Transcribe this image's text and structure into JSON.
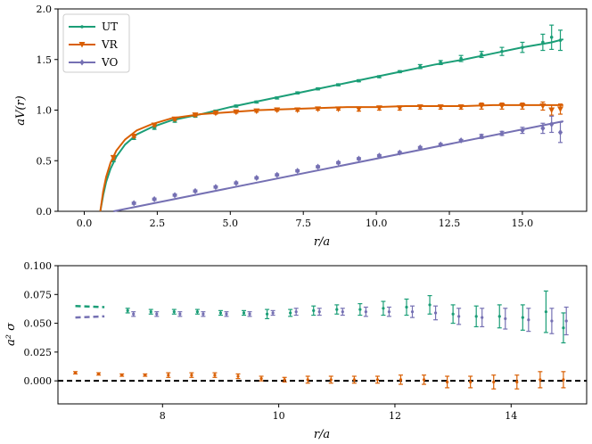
{
  "chart_data": [
    {
      "type": "line",
      "title": "",
      "xlabel": "r/a",
      "ylabel": "aV(r)",
      "xlim": [
        -0.9,
        17.2
      ],
      "ylim": [
        0.0,
        2.0
      ],
      "xticks": [
        0.0,
        2.5,
        5.0,
        7.5,
        10.0,
        12.5,
        15.0
      ],
      "xtick_labels": [
        "0.0",
        "2.5",
        "5.0",
        "7.5",
        "10.0",
        "12.5",
        "15.0"
      ],
      "yticks": [
        0.0,
        0.5,
        1.0,
        1.5,
        2.0
      ],
      "ytick_labels": [
        "0.0",
        "0.5",
        "1.0",
        "1.5",
        "2.0"
      ],
      "legend_position": "top-left",
      "series": [
        {
          "name": "UT",
          "color": "#1b9e77",
          "marker": "point",
          "fit_x": [
            0.55,
            0.65,
            0.75,
            0.9,
            1.1,
            1.4,
            1.8,
            2.3,
            3.0,
            4.0,
            5.0,
            6.0,
            7.0,
            8.0,
            9.0,
            10.0,
            11.0,
            12.0,
            13.0,
            14.0,
            15.0,
            16.0,
            16.4
          ],
          "fit_y": [
            0.0,
            0.16,
            0.29,
            0.42,
            0.54,
            0.66,
            0.76,
            0.83,
            0.9,
            0.96,
            1.03,
            1.09,
            1.15,
            1.21,
            1.27,
            1.33,
            1.39,
            1.45,
            1.5,
            1.56,
            1.62,
            1.67,
            1.7
          ],
          "points_x": [
            1.0,
            1.7,
            2.4,
            3.1,
            3.8,
            4.5,
            5.2,
            5.9,
            6.6,
            7.3,
            8.0,
            8.7,
            9.4,
            10.1,
            10.8,
            11.5,
            12.2,
            12.9,
            13.6,
            14.3,
            15.0,
            15.7,
            16.0,
            16.3
          ],
          "points_y": [
            0.5,
            0.72,
            0.82,
            0.89,
            0.94,
            0.99,
            1.04,
            1.08,
            1.12,
            1.17,
            1.21,
            1.25,
            1.29,
            1.33,
            1.38,
            1.43,
            1.47,
            1.51,
            1.55,
            1.58,
            1.62,
            1.67,
            1.72,
            1.69
          ],
          "points_err": [
            0.01,
            0.01,
            0.01,
            0.01,
            0.01,
            0.01,
            0.01,
            0.01,
            0.01,
            0.01,
            0.01,
            0.01,
            0.01,
            0.01,
            0.01,
            0.02,
            0.02,
            0.03,
            0.03,
            0.04,
            0.05,
            0.08,
            0.12,
            0.1
          ]
        },
        {
          "name": "VR",
          "color": "#d95f02",
          "marker": "triangle-down",
          "fit_x": [
            0.55,
            0.65,
            0.75,
            0.9,
            1.1,
            1.4,
            1.8,
            2.3,
            3.0,
            4.0,
            5.0,
            6.0,
            7.0,
            8.0,
            9.0,
            10.0,
            11.0,
            12.0,
            13.0,
            14.0,
            15.0,
            16.0,
            16.4
          ],
          "fit_y": [
            0.0,
            0.2,
            0.34,
            0.48,
            0.6,
            0.71,
            0.8,
            0.86,
            0.92,
            0.96,
            0.98,
            1.0,
            1.01,
            1.02,
            1.03,
            1.03,
            1.04,
            1.04,
            1.04,
            1.05,
            1.05,
            1.05,
            1.05
          ],
          "points_x": [
            1.0,
            1.7,
            2.4,
            3.1,
            3.8,
            4.5,
            5.2,
            5.9,
            6.6,
            7.3,
            8.0,
            8.7,
            9.4,
            10.1,
            10.8,
            11.5,
            12.2,
            12.9,
            13.6,
            14.3,
            15.0,
            15.7,
            16.0,
            16.3
          ],
          "points_y": [
            0.53,
            0.74,
            0.85,
            0.91,
            0.95,
            0.97,
            0.98,
            0.99,
            1.0,
            1.0,
            1.01,
            1.01,
            1.01,
            1.02,
            1.02,
            1.03,
            1.03,
            1.03,
            1.04,
            1.04,
            1.04,
            1.04,
            1.0,
            1.01
          ],
          "points_err": [
            0.02,
            0.01,
            0.01,
            0.01,
            0.01,
            0.01,
            0.01,
            0.01,
            0.01,
            0.01,
            0.01,
            0.01,
            0.02,
            0.02,
            0.02,
            0.02,
            0.02,
            0.02,
            0.03,
            0.03,
            0.03,
            0.04,
            0.05,
            0.05
          ]
        },
        {
          "name": "VO",
          "color": "#7570b3",
          "marker": "diamond",
          "fit_x": [
            1.0,
            16.4
          ],
          "fit_y": [
            0.0,
            0.89
          ],
          "points_x": [
            1.7,
            2.4,
            3.1,
            3.8,
            4.5,
            5.2,
            5.9,
            6.6,
            7.3,
            8.0,
            8.7,
            9.4,
            10.1,
            10.8,
            11.5,
            12.2,
            12.9,
            13.6,
            14.3,
            15.0,
            15.7,
            16.0,
            16.3
          ],
          "points_y": [
            0.08,
            0.12,
            0.16,
            0.2,
            0.24,
            0.28,
            0.33,
            0.36,
            0.4,
            0.44,
            0.48,
            0.52,
            0.55,
            0.58,
            0.63,
            0.66,
            0.7,
            0.74,
            0.77,
            0.8,
            0.82,
            0.86,
            0.78
          ],
          "points_err": [
            0.01,
            0.01,
            0.01,
            0.01,
            0.01,
            0.01,
            0.01,
            0.01,
            0.01,
            0.01,
            0.01,
            0.01,
            0.01,
            0.01,
            0.01,
            0.01,
            0.01,
            0.02,
            0.02,
            0.03,
            0.05,
            0.08,
            0.1
          ]
        }
      ]
    },
    {
      "type": "scatter",
      "title": "",
      "xlabel": "r/a",
      "ylabel": "a² σ",
      "xlim": [
        6.2,
        15.3
      ],
      "ylim": [
        -0.02,
        0.1
      ],
      "xticks": [
        8,
        10,
        12,
        14
      ],
      "xtick_labels": [
        "8",
        "10",
        "12",
        "14"
      ],
      "yticks": [
        0.0,
        0.025,
        0.05,
        0.075,
        0.1
      ],
      "ytick_labels": [
        "0.000",
        "0.025",
        "0.050",
        "0.075",
        "0.100"
      ],
      "reference_line": {
        "y": 0.0,
        "style": "dashed",
        "color": "#000000"
      },
      "series": [
        {
          "color": "#1b9e77",
          "dashed_x": [
            6.5,
            7.0
          ],
          "dashed_y": [
            0.065,
            0.064
          ],
          "x": [
            7.4,
            7.8,
            8.2,
            8.6,
            9.0,
            9.4,
            9.8,
            10.2,
            10.6,
            11.0,
            11.4,
            11.8,
            12.2,
            12.6,
            13.0,
            13.4,
            13.8,
            14.2,
            14.6,
            14.9
          ],
          "y": [
            0.061,
            0.06,
            0.06,
            0.06,
            0.059,
            0.059,
            0.058,
            0.059,
            0.061,
            0.062,
            0.062,
            0.063,
            0.064,
            0.066,
            0.058,
            0.056,
            0.056,
            0.055,
            0.06,
            0.046
          ],
          "err": [
            0.002,
            0.002,
            0.002,
            0.002,
            0.002,
            0.002,
            0.004,
            0.003,
            0.004,
            0.004,
            0.005,
            0.006,
            0.007,
            0.008,
            0.008,
            0.009,
            0.01,
            0.011,
            0.018,
            0.013
          ]
        },
        {
          "color": "#7570b3",
          "dashed_x": [
            6.5,
            7.0
          ],
          "dashed_y": [
            0.055,
            0.056
          ],
          "x": [
            7.5,
            7.9,
            8.3,
            8.7,
            9.1,
            9.5,
            9.9,
            10.3,
            10.7,
            11.1,
            11.5,
            11.9,
            12.3,
            12.7,
            13.1,
            13.5,
            13.9,
            14.3,
            14.7,
            14.95
          ],
          "y": [
            0.058,
            0.058,
            0.058,
            0.058,
            0.058,
            0.058,
            0.059,
            0.06,
            0.06,
            0.06,
            0.06,
            0.06,
            0.06,
            0.059,
            0.056,
            0.055,
            0.054,
            0.053,
            0.052,
            0.052
          ],
          "err": [
            0.002,
            0.002,
            0.002,
            0.002,
            0.002,
            0.002,
            0.002,
            0.003,
            0.003,
            0.003,
            0.004,
            0.004,
            0.005,
            0.006,
            0.007,
            0.008,
            0.009,
            0.01,
            0.011,
            0.012
          ]
        },
        {
          "color": "#d95f02",
          "dashed_x": [],
          "dashed_y": [],
          "x": [
            6.5,
            6.9,
            7.3,
            7.7,
            8.1,
            8.5,
            8.9,
            9.3,
            9.7,
            10.1,
            10.5,
            10.9,
            11.3,
            11.7,
            12.1,
            12.5,
            12.9,
            13.3,
            13.7,
            14.1,
            14.5,
            14.9
          ],
          "y": [
            0.007,
            0.006,
            0.005,
            0.005,
            0.005,
            0.005,
            0.005,
            0.004,
            0.002,
            0.001,
            0.001,
            0.001,
            0.001,
            0.001,
            0.001,
            0.001,
            -0.001,
            -0.001,
            -0.001,
            -0.001,
            0.001,
            0.001
          ],
          "err": [
            0.001,
            0.001,
            0.001,
            0.001,
            0.002,
            0.002,
            0.002,
            0.002,
            0.002,
            0.002,
            0.003,
            0.003,
            0.003,
            0.003,
            0.004,
            0.004,
            0.005,
            0.005,
            0.006,
            0.006,
            0.007,
            0.007
          ]
        }
      ]
    }
  ]
}
